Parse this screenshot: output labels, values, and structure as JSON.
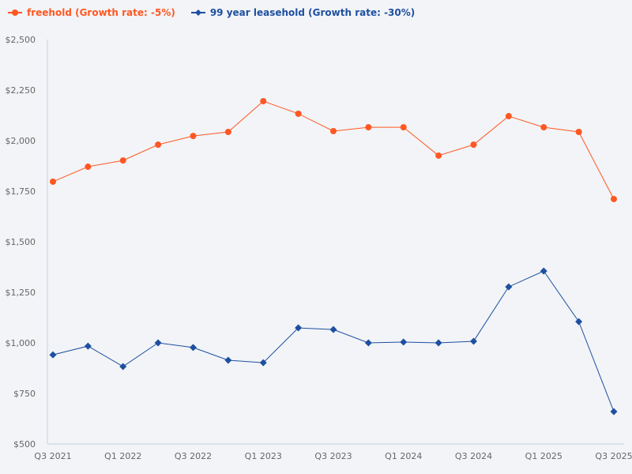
{
  "chart_data": {
    "type": "line",
    "title": "",
    "xlabel": "",
    "ylabel": "",
    "ylim": [
      500,
      2500
    ],
    "yticks": [
      500,
      750,
      1000,
      1250,
      1500,
      1750,
      2000,
      2250,
      2500
    ],
    "ytick_labels": [
      "$500",
      "$750",
      "$1,000",
      "$1,250",
      "$1,500",
      "$1,750",
      "$2,000",
      "$2,250",
      "$2,500"
    ],
    "categories": [
      "Q3 2021",
      "Q4 2021",
      "Q1 2022",
      "Q2 2022",
      "Q3 2022",
      "Q4 2022",
      "Q1 2023",
      "Q2 2023",
      "Q3 2023",
      "Q4 2023",
      "Q1 2024",
      "Q2 2024",
      "Q3 2024",
      "Q4 2024",
      "Q1 2025",
      "Q2 2025",
      "Q3 2025"
    ],
    "xtick_labels": [
      "Q3 2021",
      "Q1 2022",
      "Q3 2022",
      "Q1 2023",
      "Q3 2023",
      "Q1 2024",
      "Q3 2024",
      "Q1 2025",
      "Q3 2025"
    ],
    "grid": false,
    "legend_position": "top-left",
    "series": [
      {
        "name": "freehold (Growth rate: -5%)",
        "color": "#ff5722",
        "marker": "circle",
        "values": [
          1797,
          1871,
          1902,
          1980,
          2023,
          2043,
          2195,
          2133,
          2047,
          2066,
          2066,
          1926,
          1980,
          2121,
          2066,
          2043,
          1711
        ]
      },
      {
        "name": "99 year leasehold (Growth rate: -30%)",
        "color": "#1e4fa0",
        "marker": "diamond",
        "values": [
          941,
          984,
          883,
          1000,
          977,
          914,
          902,
          1074,
          1066,
          1000,
          1004,
          1000,
          1008,
          1277,
          1355,
          1105,
          660
        ]
      }
    ]
  }
}
